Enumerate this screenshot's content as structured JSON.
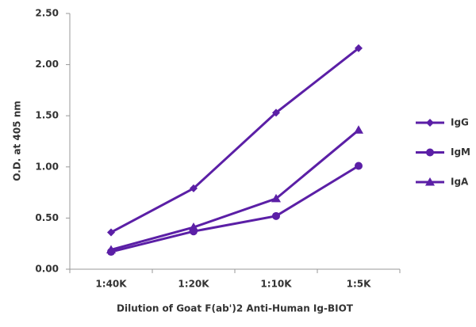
{
  "chart_data": {
    "type": "line",
    "x_label": "Dilution of Goat F(ab')2 Anti-Human Ig-BIOT",
    "y_label": "O.D. at 405 nm",
    "categories": [
      "1:40K",
      "1:20K",
      "1:10K",
      "1:5K"
    ],
    "series": [
      {
        "name": "IgG",
        "color": "#5b1fa6",
        "marker": "diamond",
        "values": [
          0.36,
          0.79,
          1.53,
          2.16
        ]
      },
      {
        "name": "IgM",
        "color": "#5b1fa6",
        "marker": "circle",
        "values": [
          0.17,
          0.37,
          0.52,
          1.01
        ]
      },
      {
        "name": "IgA",
        "color": "#5b1fa6",
        "marker": "triangle",
        "values": [
          0.19,
          0.41,
          0.69,
          1.36
        ]
      }
    ],
    "ylim": [
      0,
      2.5
    ],
    "yticks": [
      {
        "value": 0,
        "label": "0.00"
      },
      {
        "value": 0.5,
        "label": "0.50"
      },
      {
        "value": 1,
        "label": "1.00"
      },
      {
        "value": 1.5,
        "label": "1.50"
      },
      {
        "value": 2,
        "label": "2.00"
      },
      {
        "value": 2.5,
        "label": "2.50"
      }
    ],
    "grid": false,
    "legend": "right"
  }
}
